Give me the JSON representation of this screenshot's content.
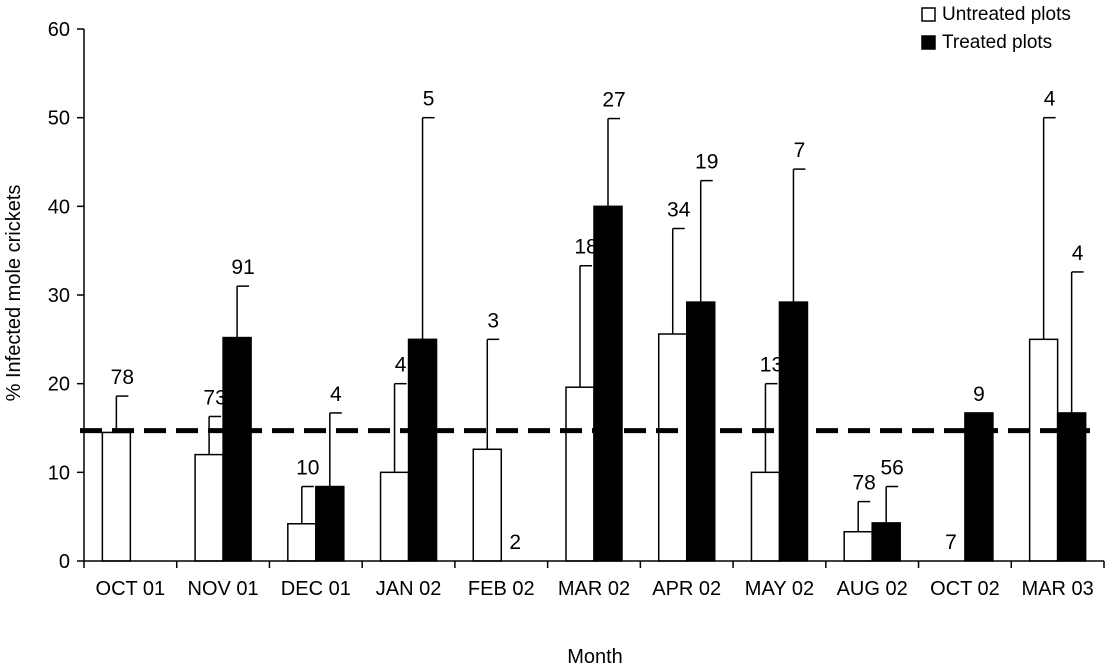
{
  "chart_data": {
    "type": "bar",
    "title": "",
    "xlabel": "Month",
    "ylabel": "% Infected mole crickets",
    "ylim": [
      0,
      60
    ],
    "yticks": [
      0,
      10,
      20,
      30,
      40,
      50,
      60
    ],
    "grid": false,
    "legend_position": "top-right",
    "categories": [
      "OCT 01",
      "NOV 01",
      "DEC 01",
      "JAN 02",
      "FEB 02",
      "MAR 02",
      "APR 02",
      "MAY 02",
      "AUG 02",
      "OCT 02",
      "MAR 03"
    ],
    "series": [
      {
        "name": "Untreated plots",
        "color": "#ffffff",
        "values": [
          14.5,
          12.0,
          4.2,
          10.0,
          12.6,
          19.6,
          25.6,
          10.0,
          3.3,
          0.0,
          25.0
        ],
        "error_upper": [
          18.6,
          16.3,
          8.4,
          20.0,
          25.0,
          33.3,
          37.5,
          20.0,
          6.7,
          null,
          50.0
        ],
        "labels": [
          "78",
          "73",
          "10",
          "4",
          "3",
          "18",
          "34",
          "13",
          "78",
          "7",
          "4"
        ]
      },
      {
        "name": "Treated plots",
        "color": "#000000",
        "values": [
          0.0,
          25.2,
          8.4,
          25.0,
          0.0,
          40.0,
          29.2,
          29.2,
          4.3,
          16.7,
          16.7
        ],
        "error_upper": [
          null,
          31.0,
          16.7,
          50.0,
          null,
          49.9,
          42.9,
          44.2,
          8.4,
          null,
          32.6
        ],
        "labels": [
          "",
          "91",
          "4",
          "5",
          "2",
          "27",
          "19",
          "7",
          "56",
          "9",
          "4"
        ]
      }
    ],
    "reference_line": {
      "value": 14.7,
      "style": "dashed"
    }
  }
}
